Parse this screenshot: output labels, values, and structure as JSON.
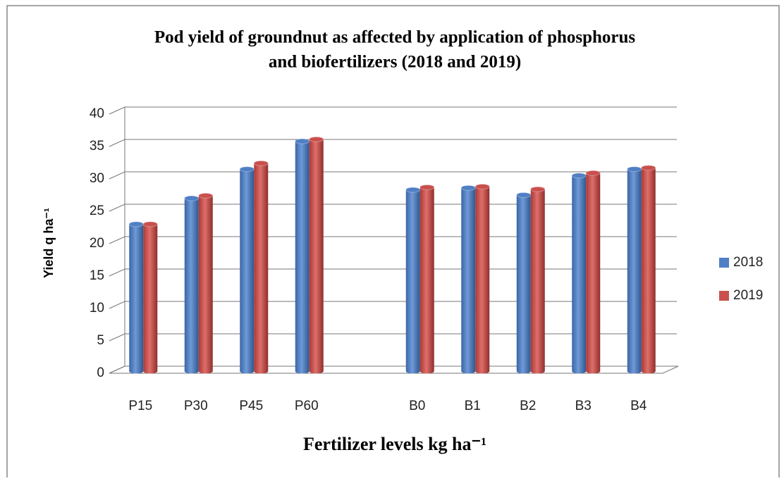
{
  "chart_data": {
    "type": "bar",
    "title": "Pod yield of groundnut as affected by application of phosphorus",
    "subtitle": "and biofertilizers (2018 and 2019)",
    "x_label": "Fertilizer levels kg ha⁻¹",
    "y_label": "Yield q ha⁻¹",
    "categories": [
      "P15",
      "P30",
      "P45",
      "P60",
      null,
      "B0",
      "B1",
      "B2",
      "B3",
      "B4"
    ],
    "series": [
      {
        "name": "2018",
        "color": "#4f7fc4",
        "values": [
          23,
          27,
          31.5,
          35.8,
          null,
          28.3,
          28.6,
          27.5,
          30.5,
          31.5
        ]
      },
      {
        "name": "2019",
        "color": "#c9504d",
        "values": [
          23,
          27.4,
          32.4,
          36.1,
          null,
          28.7,
          28.8,
          28.4,
          30.9,
          31.7
        ]
      }
    ],
    "ylim": [
      0,
      40
    ],
    "yticks": [
      0,
      5,
      10,
      15,
      20,
      25,
      30,
      35,
      40
    ],
    "grid": true,
    "legend": "right"
  }
}
